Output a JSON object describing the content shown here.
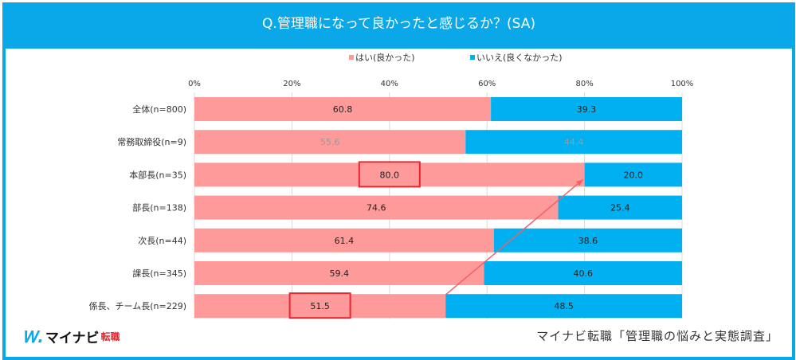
{
  "title": "Q.管理職になって良かったと感じるか？(SA)",
  "source": "マイナビ転職「管理職の悩みと実態調査」",
  "logo": {
    "mark": "M",
    "kana": "マイナビ",
    "kanji": "転職"
  },
  "chart_data": {
    "type": "bar",
    "orientation": "horizontal",
    "stacked": true,
    "title": "Q.管理職になって良かったと感じるか？(SA)",
    "categories": [
      "全体(n=800)",
      "常務取締役(n=9)",
      "本部長(n=35)",
      "部長(n=138)",
      "次長(n=44)",
      "課長(n=345)",
      "係長、チーム長(n=229)"
    ],
    "series": [
      {
        "name": "はい(良かった)",
        "color": "#ff9a9a",
        "values": [
          60.8,
          55.6,
          80.0,
          74.6,
          61.4,
          59.4,
          51.5
        ],
        "labels": [
          "60.8",
          "55.6",
          "80.0",
          "74.6",
          "61.4",
          "59.4",
          "51.5"
        ]
      },
      {
        "name": "いいえ(良くなかった)",
        "color": "#00b0f0",
        "values": [
          39.3,
          44.4,
          20.0,
          25.4,
          38.6,
          40.6,
          48.5
        ],
        "labels": [
          "39.3",
          "44.4",
          "20.0",
          "25.4",
          "38.6",
          "40.6",
          "48.5"
        ]
      }
    ],
    "xlim": [
      0,
      100
    ],
    "xticks": [
      "0%",
      "20%",
      "40%",
      "60%",
      "80%",
      "100%"
    ],
    "grid": true,
    "legend_position": "top",
    "highlighted": [
      "80.0",
      "51.5"
    ],
    "annotation": "arrow from 係長、チーム長 to 本部長"
  }
}
